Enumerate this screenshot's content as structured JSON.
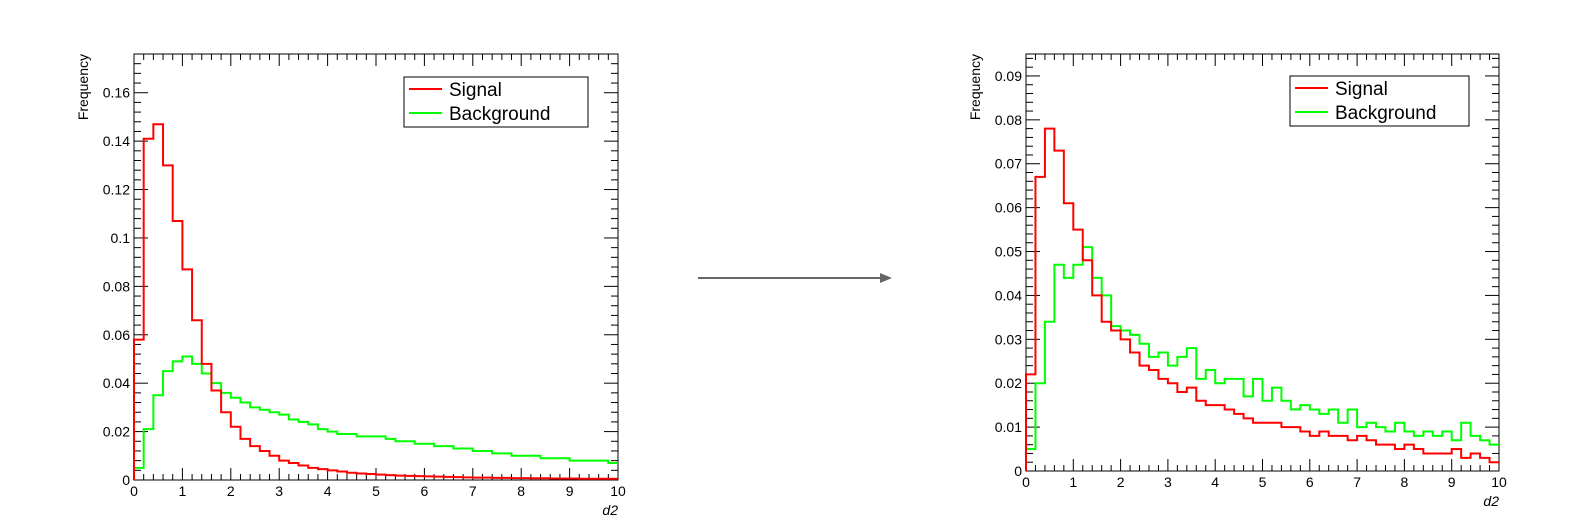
{
  "chart_data": [
    {
      "type": "histogram",
      "xlabel": "d2",
      "ylabel": "Frequency",
      "xlim": [
        0,
        10
      ],
      "ylim": [
        0,
        0.176
      ],
      "x_ticks": [
        "0",
        "1",
        "2",
        "3",
        "4",
        "5",
        "6",
        "7",
        "8",
        "9",
        "10"
      ],
      "y_ticks": [
        "0",
        "0.02",
        "0.04",
        "0.06",
        "0.08",
        "0.1",
        "0.12",
        "0.14",
        "0.16"
      ],
      "legend": {
        "position": "top-right"
      },
      "bin_width": 0.2,
      "series": [
        {
          "name": "Signal",
          "color": "#ff0000",
          "values": [
            0.058,
            0.141,
            0.147,
            0.13,
            0.107,
            0.087,
            0.066,
            0.048,
            0.037,
            0.028,
            0.022,
            0.017,
            0.014,
            0.012,
            0.01,
            0.008,
            0.007,
            0.006,
            0.005,
            0.0045,
            0.004,
            0.0035,
            0.003,
            0.0027,
            0.0025,
            0.0022,
            0.002,
            0.0018,
            0.0017,
            0.0016,
            0.0015,
            0.0014,
            0.0013,
            0.0012,
            0.0011,
            0.001,
            0.001,
            0.0009,
            0.0009,
            0.0008,
            0.0008,
            0.0007,
            0.0007,
            0.0006,
            0.0006,
            0.0006,
            0.0005,
            0.0005,
            0.0005,
            0.0005
          ]
        },
        {
          "name": "Background",
          "color": "#00ff00",
          "values": [
            0.005,
            0.021,
            0.035,
            0.045,
            0.049,
            0.051,
            0.048,
            0.044,
            0.04,
            0.036,
            0.034,
            0.032,
            0.03,
            0.029,
            0.028,
            0.027,
            0.025,
            0.024,
            0.023,
            0.021,
            0.02,
            0.019,
            0.019,
            0.018,
            0.018,
            0.018,
            0.017,
            0.016,
            0.016,
            0.015,
            0.015,
            0.014,
            0.014,
            0.013,
            0.013,
            0.012,
            0.012,
            0.011,
            0.011,
            0.01,
            0.01,
            0.01,
            0.009,
            0.009,
            0.009,
            0.008,
            0.008,
            0.008,
            0.008,
            0.007
          ]
        }
      ]
    },
    {
      "type": "histogram",
      "xlabel": "d2",
      "ylabel": "Frequency",
      "xlim": [
        0,
        10
      ],
      "ylim": [
        0,
        0.095
      ],
      "x_ticks": [
        "0",
        "1",
        "2",
        "3",
        "4",
        "5",
        "6",
        "7",
        "8",
        "9",
        "10"
      ],
      "y_ticks": [
        "0",
        "0.01",
        "0.02",
        "0.03",
        "0.04",
        "0.05",
        "0.06",
        "0.07",
        "0.08",
        "0.09"
      ],
      "legend": {
        "position": "top-right"
      },
      "bin_width": 0.2,
      "series": [
        {
          "name": "Signal",
          "color": "#ff0000",
          "values": [
            0.022,
            0.067,
            0.078,
            0.073,
            0.061,
            0.055,
            0.048,
            0.04,
            0.034,
            0.032,
            0.03,
            0.027,
            0.024,
            0.023,
            0.021,
            0.02,
            0.018,
            0.019,
            0.016,
            0.015,
            0.015,
            0.014,
            0.013,
            0.012,
            0.011,
            0.011,
            0.011,
            0.01,
            0.01,
            0.009,
            0.008,
            0.009,
            0.008,
            0.008,
            0.007,
            0.008,
            0.007,
            0.006,
            0.006,
            0.005,
            0.006,
            0.005,
            0.004,
            0.004,
            0.004,
            0.005,
            0.003,
            0.004,
            0.003,
            0.002
          ]
        },
        {
          "name": "Background",
          "color": "#00ff00",
          "values": [
            0.005,
            0.02,
            0.034,
            0.047,
            0.044,
            0.047,
            0.051,
            0.044,
            0.04,
            0.033,
            0.032,
            0.031,
            0.029,
            0.026,
            0.027,
            0.024,
            0.026,
            0.028,
            0.021,
            0.023,
            0.02,
            0.021,
            0.021,
            0.017,
            0.021,
            0.016,
            0.019,
            0.016,
            0.014,
            0.015,
            0.014,
            0.013,
            0.014,
            0.011,
            0.014,
            0.01,
            0.011,
            0.01,
            0.009,
            0.011,
            0.009,
            0.008,
            0.009,
            0.008,
            0.009,
            0.007,
            0.011,
            0.008,
            0.007,
            0.006
          ]
        }
      ]
    }
  ],
  "arrow": {
    "color": "#666666"
  }
}
